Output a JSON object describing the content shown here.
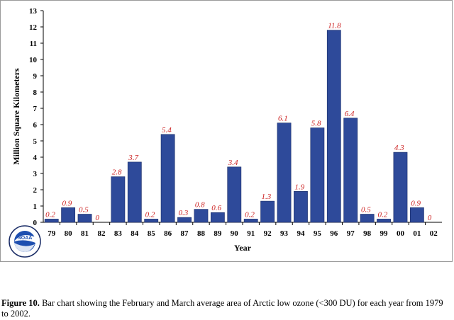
{
  "chart_data": {
    "type": "bar",
    "categories": [
      "79",
      "80",
      "81",
      "82",
      "83",
      "84",
      "85",
      "86",
      "87",
      "88",
      "89",
      "90",
      "91",
      "92",
      "93",
      "94",
      "95",
      "96",
      "97",
      "98",
      "99",
      "00",
      "01",
      "02"
    ],
    "values": [
      0.2,
      0.9,
      0.5,
      0,
      2.8,
      3.7,
      0.2,
      5.4,
      0.3,
      0.8,
      0.6,
      3.4,
      0.2,
      1.3,
      6.1,
      1.9,
      5.8,
      11.8,
      6.4,
      0.5,
      0.2,
      4.3,
      0.9,
      0
    ],
    "data_labels": [
      "0.2",
      "0.9",
      "0.5",
      "0",
      "2.8",
      "3.7",
      "0.2",
      "5.4",
      "0.3",
      "0.8",
      "0.6",
      "3.4",
      "0.2",
      "1.3",
      "6.1",
      "1.9",
      "5.8",
      "11.8",
      "6.4",
      "0.5",
      "0.2",
      "4.3",
      "0.9",
      "0"
    ],
    "xlabel": "Year",
    "ylabel": "Million Square Kilometers",
    "ylim": [
      0,
      13
    ],
    "yticks": [
      "0",
      "1",
      "2",
      "3",
      "4",
      "5",
      "6",
      "7",
      "8",
      "9",
      "10",
      "11",
      "12",
      "13"
    ],
    "grid": false,
    "bar_color": "#2e4a9a",
    "label_color": "#cc2222"
  },
  "logo": {
    "name": "noaa-logo",
    "text": "NOAA"
  },
  "caption": {
    "figure": "Figure 10.",
    "text": " Bar chart showing the February and March average area of Arctic low ozone (<300 DU) for each year from 1979 to 2002."
  }
}
